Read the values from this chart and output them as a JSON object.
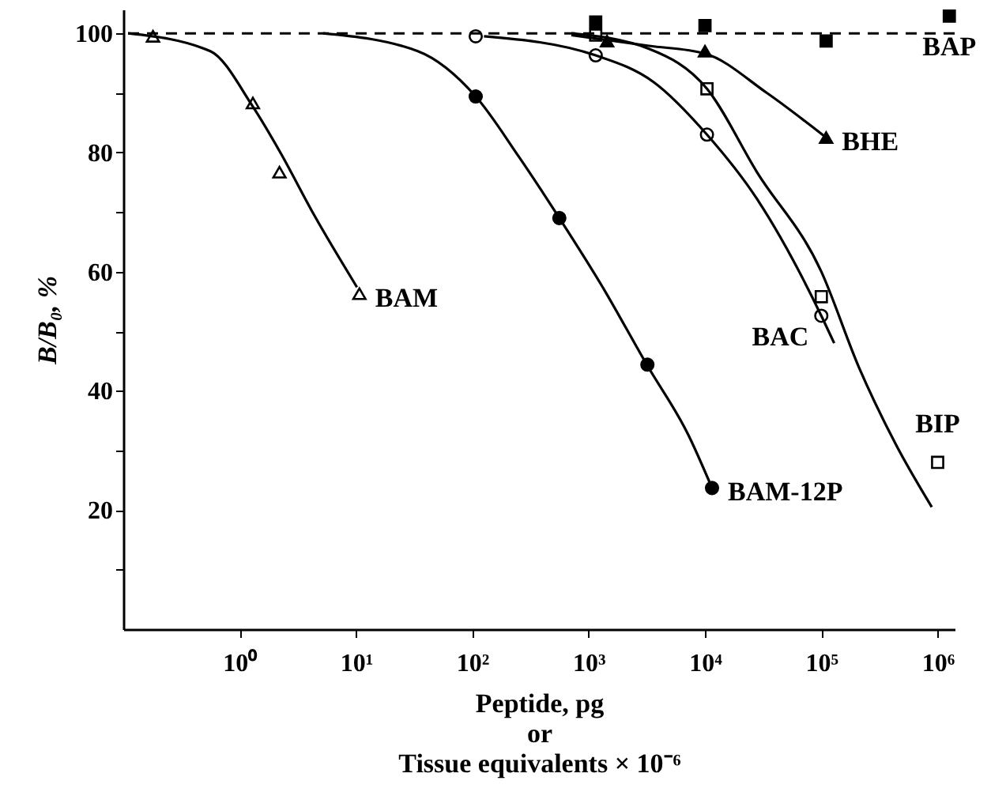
{
  "chart_data": {
    "type": "scatter",
    "xlabel": "Peptide, pg\nor\nTissue equivalents × 10⁻⁶",
    "ylabel": "B/B₀, %",
    "log": "x",
    "xlim": [
      0.1,
      1400000
    ],
    "ylim": [
      0,
      104
    ],
    "xticks": [
      {
        "value": 1,
        "label": "10⁰"
      },
      {
        "value": 10,
        "label": "10¹"
      },
      {
        "value": 100,
        "label": "10²"
      },
      {
        "value": 1000,
        "label": "10³"
      },
      {
        "value": 10000,
        "label": "10⁴"
      },
      {
        "value": 100000,
        "label": "10⁵"
      },
      {
        "value": 1000000,
        "label": "10⁶"
      }
    ],
    "yticks": [
      {
        "value": 10,
        "label": null
      },
      20,
      {
        "value": 30,
        "label": null
      },
      40,
      {
        "value": 50,
        "label": null
      },
      60,
      {
        "value": 70,
        "label": null
      },
      80,
      {
        "value": 90,
        "label": null
      },
      100
    ],
    "grid": false,
    "ref_lines": [
      {
        "axis": "y",
        "value": 100,
        "line_style": "dashed",
        "color": "#000000"
      }
    ],
    "series": [
      {
        "name": "BAM",
        "marker": "triangle",
        "color": "#ffffff",
        "x": [
          0.18,
          1.3,
          2.2,
          10.7
        ],
        "values": [
          99.5,
          88.3,
          76.7,
          56.3
        ]
      },
      {
        "name": "BAM-12P",
        "marker": "circle",
        "color": "#000000",
        "x": [
          107,
          560,
          3200,
          11500
        ],
        "values": [
          89.4,
          69,
          44.4,
          23.7
        ]
      },
      {
        "name": "BAC",
        "marker": "circle",
        "color": "#ffffff",
        "x": [
          107,
          1150,
          10400,
          100000
        ],
        "values": [
          99.5,
          96.3,
          83,
          52.6
        ]
      },
      {
        "name": "BIP",
        "marker": "square",
        "color": "#ffffff",
        "x": [
          1150,
          10400,
          100000,
          1000000
        ],
        "values": [
          99.7,
          90.7,
          55.8,
          28
        ]
      },
      {
        "name": "BHE",
        "marker": "triangle",
        "color": "#000000",
        "x": [
          1440,
          10000,
          110000
        ],
        "values": [
          98.7,
          97,
          82.5
        ]
      },
      {
        "name": "BAP",
        "marker": "square",
        "color": "#000000",
        "x": [
          1150,
          10000,
          110000,
          1260000
        ],
        "values": [
          101.9,
          101.3,
          98.7,
          102.9
        ]
      },
      {
        "type": "line",
        "marker": "none",
        "line_style": "solid",
        "color": "#000000",
        "x": [
          0.11,
          0.56,
          1.29,
          2.24,
          4.37,
          10.2
        ],
        "values": [
          100,
          97,
          87.8,
          80,
          69.5,
          57.4
        ]
      },
      {
        "type": "line",
        "marker": "none",
        "line_style": "solid",
        "color": "#000000",
        "x": [
          5.2,
          34,
          107,
          251,
          560,
          1320,
          3160,
          7240,
          11500
        ],
        "values": [
          100,
          97,
          89.4,
          79.3,
          69,
          57.4,
          44.4,
          32.5,
          23.7
        ]
      },
      {
        "type": "line",
        "marker": "none",
        "line_style": "solid",
        "color": "#000000",
        "x": [
          126,
          1150,
          3630,
          10400,
          28000,
          100000,
          129000
        ],
        "values": [
          99.5,
          96.3,
          91.8,
          83,
          72.2,
          52.6,
          48
        ]
      },
      {
        "type": "line",
        "marker": "none",
        "line_style": "solid",
        "color": "#000000",
        "x": [
          710,
          3300,
          10400,
          28000,
          100000,
          210000,
          440000,
          890000
        ],
        "values": [
          100,
          97.4,
          90.7,
          76.7,
          60,
          44,
          30.9,
          20.5
        ]
      },
      {
        "type": "line",
        "marker": "none",
        "line_style": "solid",
        "color": "#000000",
        "x": [
          710,
          3300,
          10000,
          34000,
          110000
        ],
        "values": [
          99.7,
          97.9,
          96.6,
          90,
          82.5
        ]
      }
    ]
  }
}
